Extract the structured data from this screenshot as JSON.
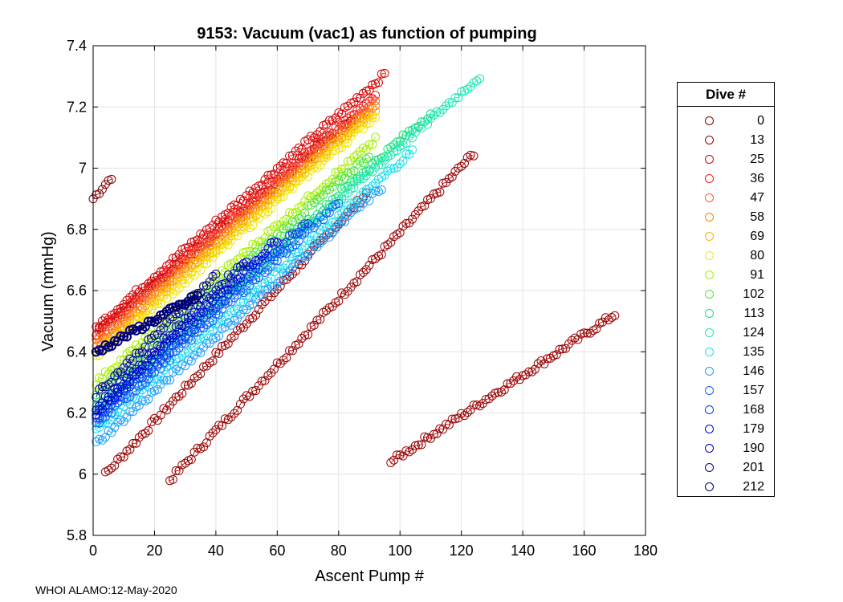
{
  "chart_data": {
    "type": "line",
    "title": "9153: Vacuum (vac1) as function of pumping",
    "xlabel": "Ascent Pump #",
    "ylabel": "Vacuum (mmHg)",
    "xlim": [
      0,
      180
    ],
    "ylim": [
      5.8,
      7.4
    ],
    "xticks": [
      0,
      20,
      40,
      60,
      80,
      100,
      120,
      140,
      160,
      180
    ],
    "yticks": [
      5.8,
      6,
      6.2,
      6.4,
      6.6,
      6.8,
      7,
      7.2,
      7.4
    ],
    "grid": true,
    "legend": {
      "title": "Dive #",
      "placement": "right",
      "entries": [
        {
          "label": "0",
          "color": "#7f0000"
        },
        {
          "label": "13",
          "color": "#9b0000"
        },
        {
          "label": "25",
          "color": "#d60000"
        },
        {
          "label": "36",
          "color": "#f41a1a"
        },
        {
          "label": "47",
          "color": "#ff5a36"
        },
        {
          "label": "58",
          "color": "#ff8000"
        },
        {
          "label": "69",
          "color": "#ffb000"
        },
        {
          "label": "80",
          "color": "#f2e600"
        },
        {
          "label": "91",
          "color": "#a6ef00"
        },
        {
          "label": "102",
          "color": "#52e33d"
        },
        {
          "label": "113",
          "color": "#18e07a"
        },
        {
          "label": "124",
          "color": "#1ee8b5"
        },
        {
          "label": "135",
          "color": "#18dff0"
        },
        {
          "label": "146",
          "color": "#1c9fff"
        },
        {
          "label": "157",
          "color": "#1060ff"
        },
        {
          "label": "168",
          "color": "#0a38f0"
        },
        {
          "label": "179",
          "color": "#0000e0"
        },
        {
          "label": "190",
          "color": "#0000c0"
        },
        {
          "label": "201",
          "color": "#00009a"
        },
        {
          "label": "212",
          "color": "#000078"
        }
      ]
    },
    "series": [
      {
        "name": "0",
        "x0": 0,
        "y0": 6.9,
        "slope": 0.012,
        "n": 7
      },
      {
        "name": "13a",
        "x0": 4,
        "y0": 6.0,
        "slope": 0.0108,
        "n": 86
      },
      {
        "name": "13b",
        "x0": 25,
        "y0": 5.98,
        "slope": 0.0108,
        "n": 100
      },
      {
        "name": "13c",
        "x0": 97,
        "y0": 6.04,
        "slope": 0.0066,
        "n": 74
      },
      {
        "name": "13d",
        "x0": 1,
        "y0": 6.46,
        "slope": 0.0084,
        "n": 85
      },
      {
        "name": "25",
        "x0": 1,
        "y0": 6.48,
        "slope": 0.0088,
        "n": 95
      },
      {
        "name": "36",
        "x0": 1,
        "y0": 6.46,
        "slope": 0.0086,
        "n": 92
      },
      {
        "name": "47",
        "x0": 1,
        "y0": 6.44,
        "slope": 0.0086,
        "n": 92
      },
      {
        "name": "58",
        "x0": 1,
        "y0": 6.42,
        "slope": 0.0086,
        "n": 92
      },
      {
        "name": "69",
        "x0": 1,
        "y0": 6.4,
        "slope": 0.0087,
        "n": 92
      },
      {
        "name": "80",
        "x0": 1,
        "y0": 6.38,
        "slope": 0.0087,
        "n": 92
      },
      {
        "name": "91",
        "x0": 1,
        "y0": 6.3,
        "slope": 0.0087,
        "n": 92
      },
      {
        "name": "102",
        "x0": 1,
        "y0": 6.26,
        "slope": 0.0088,
        "n": 90
      },
      {
        "name": "113",
        "x0": 1,
        "y0": 6.22,
        "slope": 0.0088,
        "n": 110
      },
      {
        "name": "124",
        "x0": 1,
        "y0": 6.2,
        "slope": 0.0088,
        "n": 126
      },
      {
        "name": "135",
        "x0": 1,
        "y0": 6.14,
        "slope": 0.0089,
        "n": 104
      },
      {
        "name": "146",
        "x0": 1,
        "y0": 6.1,
        "slope": 0.009,
        "n": 94
      },
      {
        "name": "157",
        "x0": 1,
        "y0": 6.16,
        "slope": 0.0092,
        "n": 80
      },
      {
        "name": "168",
        "x0": 1,
        "y0": 6.18,
        "slope": 0.0094,
        "n": 70
      },
      {
        "name": "179",
        "x0": 1,
        "y0": 6.2,
        "slope": 0.0096,
        "n": 60
      },
      {
        "name": "190",
        "x0": 1,
        "y0": 6.22,
        "slope": 0.0098,
        "n": 50
      },
      {
        "name": "201",
        "x0": 1,
        "y0": 6.26,
        "slope": 0.01,
        "n": 40
      },
      {
        "name": "212",
        "x0": 1,
        "y0": 6.4,
        "slope": 0.0055,
        "n": 34
      }
    ]
  },
  "footer": "WHOI ALAMO:12-May-2020"
}
